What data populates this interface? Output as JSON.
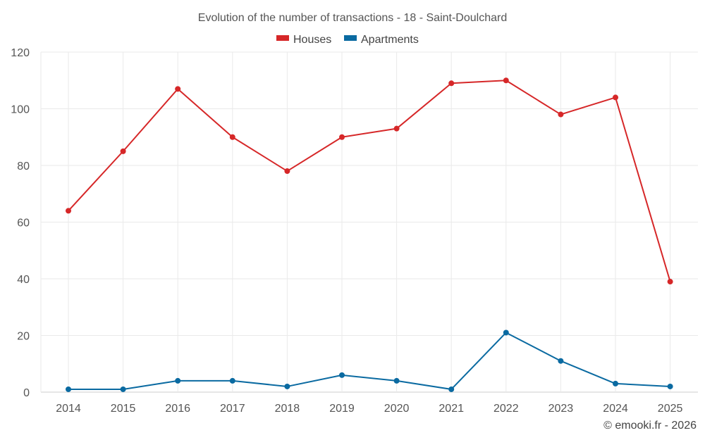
{
  "chart_data": {
    "type": "line",
    "title": "Evolution of the number of transactions - 18 - Saint-Doulchard",
    "categories": [
      "2014",
      "2015",
      "2016",
      "2017",
      "2018",
      "2019",
      "2020",
      "2021",
      "2022",
      "2023",
      "2024",
      "2025"
    ],
    "series": [
      {
        "name": "Houses",
        "color": "#d62728",
        "values": [
          64,
          85,
          107,
          90,
          78,
          90,
          93,
          109,
          110,
          98,
          104,
          39
        ]
      },
      {
        "name": "Apartments",
        "color": "#0a6aa1",
        "values": [
          1,
          1,
          4,
          4,
          2,
          6,
          4,
          1,
          21,
          11,
          3,
          2
        ]
      }
    ],
    "yticks": [
      "0",
      "20",
      "40",
      "60",
      "80",
      "100",
      "120"
    ],
    "ylim": [
      0,
      120
    ],
    "xlabel": "",
    "ylabel": "",
    "legend_position": "top-center",
    "grid": true
  },
  "credit": "© emooki.fr - 2026"
}
